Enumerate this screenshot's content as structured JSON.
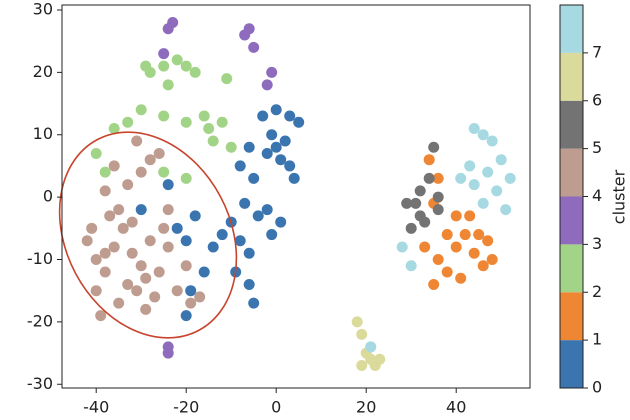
{
  "chart_data": {
    "type": "scatter",
    "x": [
      -3,
      0,
      3,
      5,
      -1,
      2,
      -2,
      1,
      3,
      4,
      -6,
      -8,
      -5,
      -7,
      -4,
      -10,
      -8,
      -6,
      -12,
      -14,
      -9,
      -6,
      -5,
      -18,
      -20,
      -16,
      -19,
      -20,
      -24,
      -30,
      -22,
      -2,
      -1,
      1,
      0,
      34,
      36,
      35,
      38,
      40,
      42,
      44,
      46,
      48,
      36,
      38,
      41,
      35,
      43,
      45,
      40,
      33,
      47,
      -22,
      -20,
      -18,
      -25,
      -28,
      -24,
      -30,
      -33,
      -36,
      -25,
      -20,
      -15,
      -12,
      -14,
      -10,
      -20,
      -25,
      -40,
      -38,
      -29,
      -11,
      -16,
      -23,
      -24,
      -6,
      -7,
      -5,
      -1,
      -2,
      -25,
      -24,
      -24,
      -42,
      -40,
      -38,
      -36,
      -34,
      -32,
      -30,
      -28,
      -35,
      -37,
      -33,
      -31,
      -29,
      -27,
      -40,
      -39,
      -25,
      -26,
      -33,
      -30,
      -28,
      -26,
      -36,
      -41,
      -38,
      -32,
      -22,
      -19,
      -17,
      -20,
      -24,
      -29,
      -35,
      -38,
      -31,
      -24,
      35,
      34,
      31,
      32,
      30,
      33,
      36,
      32,
      29,
      36,
      18,
      19,
      20,
      21,
      22,
      23,
      19,
      21,
      44,
      46,
      48,
      50,
      52,
      49,
      46,
      44,
      41,
      43,
      28,
      30,
      21,
      47,
      51
    ],
    "y": [
      13,
      14,
      13,
      12,
      10,
      9,
      7,
      6,
      5,
      3,
      8,
      5,
      3,
      -1,
      -3,
      -4,
      -7,
      -9,
      -6,
      -8,
      -12,
      -14,
      -17,
      -3,
      -7,
      -12,
      -15,
      -19,
      2,
      -2,
      -5,
      -2,
      -6,
      -4,
      8,
      6,
      3,
      -1,
      -6,
      -8,
      -6,
      -9,
      -11,
      -10,
      -10,
      -12,
      -13,
      -14,
      -3,
      -6,
      -3,
      -8,
      -7,
      22,
      21,
      20,
      21,
      20,
      18,
      14,
      12,
      11,
      13,
      12,
      11,
      12,
      9,
      8,
      3,
      4,
      7,
      4,
      21,
      19,
      13,
      28,
      27,
      27,
      26,
      24,
      20,
      18,
      23,
      -24,
      -25,
      -7,
      -10,
      -12,
      -8,
      -5,
      -9,
      -11,
      -7,
      -2,
      -3,
      -14,
      -15,
      -13,
      -16,
      -15,
      -19,
      -5,
      -12,
      2,
      4,
      6,
      7,
      5,
      -5,
      -9,
      -4,
      -15,
      -17,
      -16,
      -11,
      -8,
      -18,
      -17,
      1,
      9,
      -2,
      8,
      3,
      -1,
      -3,
      -5,
      -4,
      -2,
      1,
      -1,
      0,
      -20,
      -22,
      -25,
      -26,
      -27,
      -26,
      -27,
      -24,
      11,
      10,
      9,
      6,
      3,
      1,
      -1,
      2,
      3,
      5,
      -8,
      -11,
      -24,
      4,
      -2
    ],
    "cluster": [
      0,
      0,
      0,
      0,
      0,
      0,
      0,
      0,
      0,
      0,
      0,
      0,
      0,
      0,
      0,
      0,
      0,
      0,
      0,
      0,
      0,
      0,
      0,
      0,
      0,
      0,
      0,
      0,
      0,
      0,
      0,
      0,
      0,
      0,
      0,
      1,
      1,
      1,
      1,
      1,
      1,
      1,
      1,
      1,
      1,
      1,
      1,
      1,
      1,
      1,
      1,
      1,
      1,
      2,
      2,
      2,
      2,
      2,
      2,
      2,
      2,
      2,
      2,
      2,
      2,
      2,
      2,
      2,
      2,
      2,
      2,
      2,
      2,
      2,
      2,
      3,
      3,
      3,
      3,
      3,
      3,
      3,
      3,
      3,
      3,
      4,
      4,
      4,
      4,
      4,
      4,
      4,
      4,
      4,
      4,
      4,
      4,
      4,
      4,
      4,
      4,
      4,
      4,
      4,
      4,
      4,
      4,
      4,
      4,
      4,
      4,
      4,
      4,
      4,
      4,
      4,
      4,
      4,
      4,
      4,
      4,
      5,
      5,
      5,
      5,
      5,
      5,
      5,
      5,
      5,
      5,
      6,
      6,
      6,
      6,
      6,
      6,
      6,
      6,
      7,
      7,
      7,
      7,
      7,
      7,
      7,
      7,
      7,
      7,
      7,
      7,
      7,
      7,
      7
    ],
    "colors": [
      "#3a75b0",
      "#ef8633",
      "#a2d487",
      "#8e6bbd",
      "#bf9c90",
      "#737373",
      "#dadb9b",
      "#a7d9e3"
    ],
    "xlim": [
      -47.6,
      56.4
    ],
    "ylim": [
      -30.6,
      30.8
    ],
    "xticks": [
      -40,
      -20,
      0,
      20,
      40
    ],
    "yticks": [
      -30,
      -20,
      -10,
      0,
      10,
      20,
      30
    ],
    "clim": [
      0,
      8
    ],
    "cticks": [
      0,
      1,
      2,
      3,
      4,
      5,
      6,
      7
    ],
    "colorbar_label": "cluster"
  }
}
